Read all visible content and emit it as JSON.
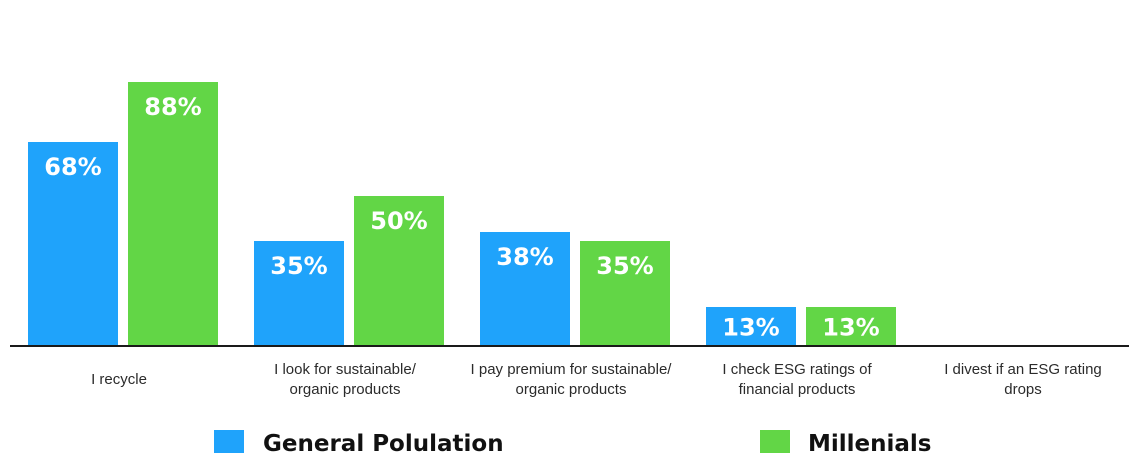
{
  "chart_data": {
    "type": "bar",
    "categories": [
      [
        "I recycle"
      ],
      [
        "I look for sustainable/",
        "organic products"
      ],
      [
        "I pay premium for sustainable/",
        "organic products"
      ],
      [
        "I check ESG ratings of",
        "financial products"
      ],
      [
        "I divest if an ESG rating",
        "drops"
      ]
    ],
    "series": [
      {
        "name": "General Polulation",
        "color": "#1fa3fb",
        "values": [
          68,
          35,
          38,
          13,
          null
        ],
        "labels": [
          "68%",
          "35%",
          "38%",
          "13%",
          ""
        ]
      },
      {
        "name": "Millenials",
        "color": "#62d646",
        "values": [
          88,
          50,
          35,
          13,
          null
        ],
        "labels": [
          "88%",
          "50%",
          "35%",
          "13%",
          ""
        ]
      }
    ],
    "ylim": [
      0,
      100
    ],
    "grid": false,
    "legend_position": "bottom",
    "title": "",
    "xlabel": "",
    "ylabel": ""
  }
}
